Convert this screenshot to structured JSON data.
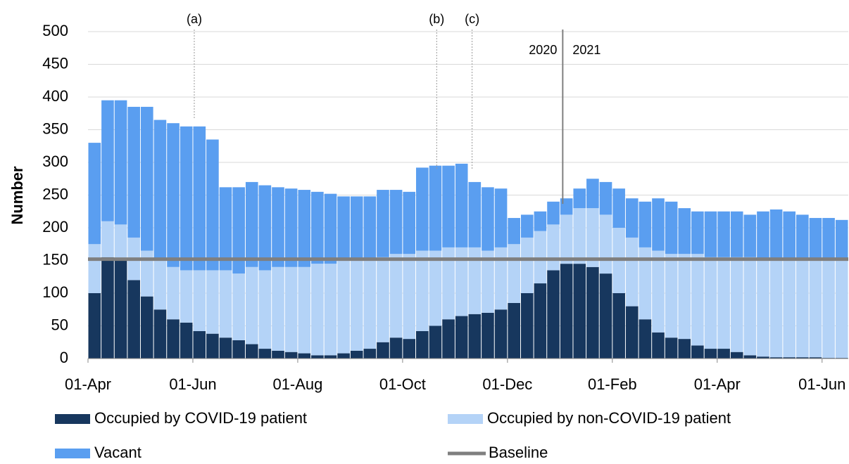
{
  "chart_data": {
    "type": "stacked_bar",
    "y_label": "Number",
    "categories": [
      "01-Apr",
      null,
      null,
      null,
      null,
      null,
      null,
      null,
      "01-Jun",
      null,
      null,
      null,
      null,
      null,
      null,
      null,
      "01-Aug",
      null,
      null,
      null,
      null,
      null,
      null,
      null,
      "01-Oct",
      null,
      null,
      null,
      null,
      null,
      null,
      null,
      "01-Dec",
      null,
      null,
      null,
      null,
      null,
      null,
      null,
      "01-Feb",
      null,
      null,
      null,
      null,
      null,
      null,
      null,
      "01-Apr",
      null,
      null,
      null,
      null,
      null,
      null,
      null,
      "01-Jun",
      null
    ],
    "series": [
      {
        "name": "Occupied by COVID-19 patient",
        "color": "#17375e",
        "values": [
          100,
          155,
          150,
          120,
          95,
          75,
          60,
          55,
          42,
          38,
          32,
          28,
          22,
          15,
          12,
          10,
          8,
          5,
          5,
          8,
          12,
          15,
          25,
          32,
          30,
          42,
          50,
          60,
          65,
          68,
          70,
          75,
          85,
          100,
          115,
          135,
          145,
          145,
          140,
          130,
          100,
          80,
          60,
          40,
          32,
          30,
          20,
          15,
          15,
          10,
          5,
          3,
          2,
          2,
          2,
          2,
          1,
          1
        ]
      },
      {
        "name": "Occupied by non-COVID-19 patient",
        "color": "#b4d3f7",
        "values": [
          75,
          55,
          55,
          65,
          70,
          75,
          80,
          80,
          93,
          97,
          103,
          102,
          118,
          120,
          128,
          130,
          132,
          140,
          140,
          142,
          138,
          135,
          130,
          128,
          130,
          123,
          115,
          110,
          105,
          102,
          95,
          95,
          90,
          85,
          80,
          70,
          75,
          85,
          90,
          90,
          100,
          105,
          110,
          125,
          128,
          130,
          140,
          140,
          140,
          145,
          150,
          147,
          148,
          148,
          148,
          148,
          149,
          149
        ]
      },
      {
        "name": "Vacant",
        "color": "#5a9ef0",
        "values": [
          155,
          185,
          190,
          200,
          220,
          215,
          220,
          220,
          220,
          200,
          127,
          132,
          130,
          130,
          122,
          120,
          118,
          110,
          107,
          98,
          98,
          98,
          103,
          98,
          95,
          127,
          130,
          125,
          128,
          100,
          97,
          90,
          40,
          35,
          30,
          35,
          25,
          30,
          45,
          50,
          60,
          60,
          70,
          80,
          80,
          70,
          65,
          70,
          70,
          70,
          65,
          75,
          78,
          75,
          70,
          65,
          65,
          62
        ]
      }
    ],
    "baseline": {
      "name": "Baseline",
      "color": "#7f7f7f",
      "value": 152
    },
    "annotations": [
      "(a)",
      "(b)",
      "(c)"
    ],
    "year_labels": [
      "2020",
      "2021"
    ],
    "ylim": [
      0,
      500
    ],
    "yticks": [
      0,
      50,
      100,
      150,
      200,
      250,
      300,
      350,
      400,
      450,
      500
    ],
    "grid": true
  }
}
